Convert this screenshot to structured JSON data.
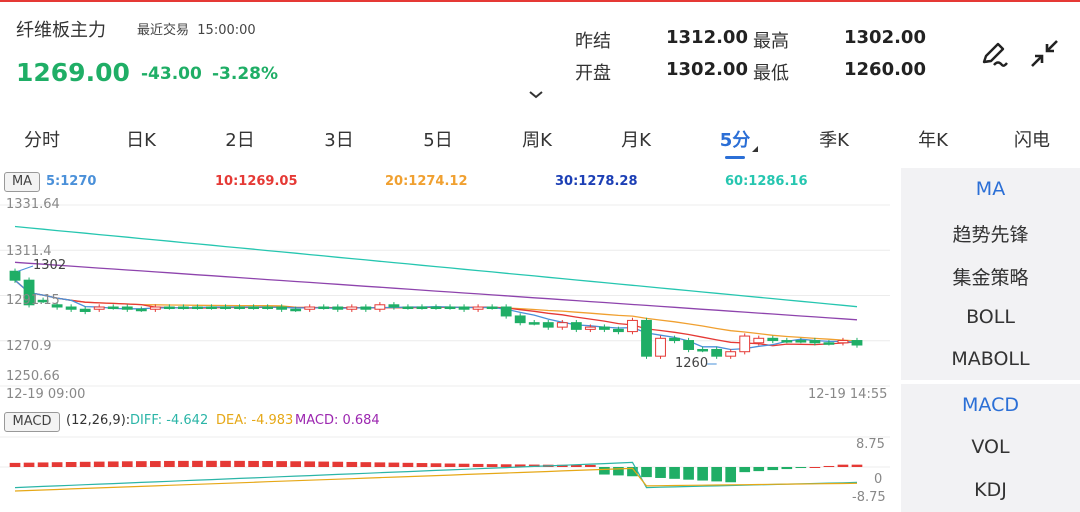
{
  "header": {
    "name": "纤维板主力",
    "last_trade_label": "最近交易",
    "last_trade_time": "15:00:00",
    "price": "1269.00",
    "change": "-43.00",
    "change_pct": "-3.28%"
  },
  "quote": {
    "prev_close_label": "昨结",
    "prev_close": "1312.00",
    "high_label": "最高",
    "high": "1302.00",
    "open_label": "开盘",
    "open": "1302.00",
    "low_label": "最低",
    "low": "1260.00"
  },
  "icons": {
    "draw": "pen-draw-icon",
    "collapse": "collapse-icon",
    "expand_chevron": "chevron-down-icon"
  },
  "tabs": [
    {
      "label": "分时"
    },
    {
      "label": "日K"
    },
    {
      "label": "2日"
    },
    {
      "label": "3日"
    },
    {
      "label": "5日"
    },
    {
      "label": "周K"
    },
    {
      "label": "月K"
    },
    {
      "label": "5分"
    },
    {
      "label": "季K"
    },
    {
      "label": "年K"
    },
    {
      "label": "闪电"
    }
  ],
  "active_tab": "5分",
  "ma_legend": {
    "badge": "MA",
    "ma5": "5:1270",
    "ma10": "10:1269.05",
    "ma20": "20:1274.12",
    "ma30": "30:1278.28",
    "ma60": "60:1286.16"
  },
  "price_axis": {
    "top": "1331.64",
    "l2": "1311.4",
    "l3": "1291.15",
    "l4": "1270.9",
    "bottom": "1250.66"
  },
  "annotations": {
    "high_marker": "1302",
    "low_marker": "1260"
  },
  "time_axis": {
    "start": "12-19 09:00",
    "end": "12-19 14:55"
  },
  "macd_legend": {
    "badge": "MACD",
    "params": "(12,26,9):",
    "diff": "DIFF: -4.642",
    "dea": "DEA: -4.983",
    "macd": "MACD: 0.684"
  },
  "macd_axis": {
    "top": "8.75",
    "mid": "0",
    "bottom": "-8.75"
  },
  "sidebar": {
    "main_indicators": [
      "MA",
      "趋势先锋",
      "集金策略",
      "BOLL",
      "MABOLL"
    ],
    "sub_indicators": [
      "MACD",
      "VOL",
      "KDJ"
    ]
  },
  "colors": {
    "down": "#1fae66",
    "up": "#e53935",
    "accent": "#2b6fd6",
    "ma5": "#4a90d9",
    "ma10": "#e53935",
    "ma20": "#f0a030",
    "ma30": "#1c3fb5",
    "ma60": "#26c6b0",
    "diff": "#2bb5a7",
    "dea": "#e6a817",
    "macd": "#9c27b0",
    "ma_purple": "#8e44ad"
  },
  "chart_data": {
    "type": "candlestick",
    "interval": "5分",
    "open": [
      1302,
      1298,
      1289,
      1287,
      1286,
      1285,
      1285,
      1286,
      1286,
      1285,
      1285,
      1286,
      1286,
      1286,
      1286,
      1286,
      1286,
      1286,
      1286,
      1286,
      1285,
      1285,
      1286,
      1286,
      1285,
      1286,
      1285,
      1287,
      1286,
      1286,
      1286,
      1286,
      1286,
      1285,
      1286,
      1286,
      1282,
      1279,
      1279,
      1277,
      1279,
      1276,
      1277,
      1276,
      1275,
      1280,
      1264,
      1272,
      1271,
      1267,
      1267,
      1264,
      1266,
      1270,
      1272,
      1271,
      1271,
      1271,
      1270,
      1270,
      1271
    ],
    "close": [
      1298,
      1287,
      1289,
      1286,
      1285,
      1284,
      1286,
      1286,
      1285,
      1285,
      1286,
      1286,
      1286,
      1286,
      1286,
      1286,
      1286,
      1286,
      1286,
      1285,
      1285,
      1286,
      1286,
      1285,
      1286,
      1285,
      1287,
      1286,
      1286,
      1286,
      1286,
      1286,
      1285,
      1286,
      1286,
      1282,
      1279,
      1279,
      1277,
      1279,
      1276,
      1277,
      1276,
      1275,
      1280,
      1264,
      1272,
      1271,
      1267,
      1267,
      1264,
      1266,
      1273,
      1272,
      1271,
      1271,
      1271,
      1270,
      1270,
      1271,
      1269
    ],
    "high_marker": 1302,
    "low_marker": 1260,
    "ma5": 1270,
    "ma10": 1269.05,
    "ma20": 1274.12,
    "ma30": 1278.28,
    "ma60": 1286.16,
    "ylim": [
      1250.66,
      1331.64
    ],
    "macd": {
      "diff": -4.642,
      "dea": -4.983,
      "macd": 0.684,
      "ylim": [
        -8.75,
        8.75
      ]
    }
  }
}
